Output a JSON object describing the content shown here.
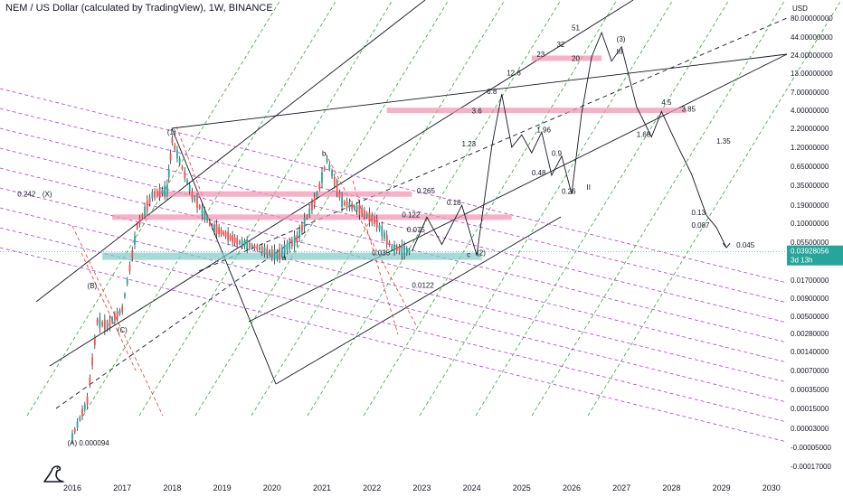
{
  "header": {
    "title": "NEM / US Dollar (calculated by TradingView), 1W, BINANCE"
  },
  "price_axis": {
    "currency_label": "USD",
    "current_price": "0.03928056",
    "countdown": "3d 13h",
    "current_price_color": "#26a69a"
  },
  "colors": {
    "up_candle": "#131722",
    "channel_line": "#131722",
    "pink_zone": "#f48fb1",
    "teal_zone": "#80cbc4",
    "green_dash": "#43a047",
    "magenta_dash": "#ab47bc",
    "red_dash": "#e53935"
  },
  "logo": {
    "icon": "dinosaur-logo-icon"
  },
  "chart_data": {
    "type": "line",
    "title": "NEM / US Dollar (calculated by TradingView), 1W, BINANCE",
    "xlabel": "",
    "ylabel": "",
    "y_scale": "log",
    "x_ticks": [
      "2016",
      "2017",
      "2018",
      "2019",
      "2020",
      "2021",
      "2022",
      "2023",
      "2024",
      "2025",
      "2026",
      "2027",
      "2028",
      "2029",
      "2030"
    ],
    "y_ticks": [
      "80.00000000",
      "44.00000000",
      "24.00000000",
      "13.00000000",
      "7.00000000",
      "4.00000000",
      "2.20000000",
      "1.20000000",
      "0.65000000",
      "0.35000000",
      "0.19000000",
      "0.10000000",
      "0.05500000",
      "0.03000000",
      "0.01700000",
      "0.00900000",
      "0.00500000",
      "0.00280000",
      "0.00140000",
      "0.00070000",
      "0.00035000",
      "0.00015000",
      "0.00003000",
      "-0.00005000",
      "-0.00017000"
    ],
    "series": [
      {
        "kind": "price-history",
        "points": [
          {
            "x": 2016.0,
            "y": 9.4e-05
          },
          {
            "x": 2016.3,
            "y": 0.0003
          },
          {
            "x": 2016.5,
            "y": 0.004
          },
          {
            "x": 2016.7,
            "y": 0.0035
          },
          {
            "x": 2017.0,
            "y": 0.006
          },
          {
            "x": 2017.3,
            "y": 0.09
          },
          {
            "x": 2017.6,
            "y": 0.25
          },
          {
            "x": 2017.9,
            "y": 0.3
          },
          {
            "x": 2018.0,
            "y": 1.5
          },
          {
            "x": 2018.4,
            "y": 0.25
          },
          {
            "x": 2018.8,
            "y": 0.09
          },
          {
            "x": 2019.3,
            "y": 0.055
          },
          {
            "x": 2019.7,
            "y": 0.045
          },
          {
            "x": 2020.1,
            "y": 0.035
          },
          {
            "x": 2020.5,
            "y": 0.06
          },
          {
            "x": 2020.9,
            "y": 0.25
          },
          {
            "x": 2021.1,
            "y": 0.8
          },
          {
            "x": 2021.4,
            "y": 0.2
          },
          {
            "x": 2021.8,
            "y": 0.15
          },
          {
            "x": 2022.1,
            "y": 0.1
          },
          {
            "x": 2022.4,
            "y": 0.045
          },
          {
            "x": 2022.8,
            "y": 0.039
          }
        ]
      },
      {
        "kind": "projection",
        "points": [
          {
            "x": 2022.8,
            "y": 0.04
          },
          {
            "x": 2023.1,
            "y": 0.122
          },
          {
            "x": 2023.4,
            "y": 0.05
          },
          {
            "x": 2023.8,
            "y": 0.18
          },
          {
            "x": 2024.1,
            "y": 0.035
          },
          {
            "x": 2024.4,
            "y": 1.23
          },
          {
            "x": 2024.6,
            "y": 6.8
          },
          {
            "x": 2024.8,
            "y": 1.2
          },
          {
            "x": 2025.0,
            "y": 1.8
          },
          {
            "x": 2025.2,
            "y": 1.0
          },
          {
            "x": 2025.4,
            "y": 1.96
          },
          {
            "x": 2025.6,
            "y": 0.48
          },
          {
            "x": 2025.8,
            "y": 0.9
          },
          {
            "x": 2026.0,
            "y": 0.26
          },
          {
            "x": 2026.2,
            "y": 3.6
          },
          {
            "x": 2026.4,
            "y": 23
          },
          {
            "x": 2026.6,
            "y": 51
          },
          {
            "x": 2026.8,
            "y": 20
          },
          {
            "x": 2027.0,
            "y": 32
          },
          {
            "x": 2027.3,
            "y": 4.5
          },
          {
            "x": 2027.6,
            "y": 1.68
          },
          {
            "x": 2027.8,
            "y": 3.85
          },
          {
            "x": 2028.1,
            "y": 1.35
          },
          {
            "x": 2028.4,
            "y": 0.5
          },
          {
            "x": 2028.7,
            "y": 0.13
          },
          {
            "x": 2028.9,
            "y": 0.087
          },
          {
            "x": 2029.1,
            "y": 0.045
          }
        ]
      }
    ],
    "annotations": [
      {
        "text": "(1)",
        "x": 2017.9,
        "y": 1.8
      },
      {
        "text": "(B)",
        "x": 2016.3,
        "y": 0.012
      },
      {
        "text": "(C)",
        "x": 2016.9,
        "y": 0.0028
      },
      {
        "text": "(A) 0.000094",
        "x": 2015.9,
        "y": 7e-05
      },
      {
        "text": "0.242",
        "x": 2014.9,
        "y": 0.24
      },
      {
        "text": "(X)",
        "x": 2015.4,
        "y": 0.24
      },
      {
        "text": "b",
        "x": 2021.0,
        "y": 0.9
      },
      {
        "text": "a",
        "x": 2020.2,
        "y": 0.03
      },
      {
        "text": "0.265",
        "x": 2022.9,
        "y": 0.265
      },
      {
        "text": "0.122",
        "x": 2022.6,
        "y": 0.122
      },
      {
        "text": "0.18",
        "x": 2023.5,
        "y": 0.18
      },
      {
        "text": "0.075",
        "x": 2022.7,
        "y": 0.075
      },
      {
        "text": "0.035",
        "x": 2022.0,
        "y": 0.035
      },
      {
        "text": "0.0122",
        "x": 2022.8,
        "y": 0.0122
      },
      {
        "text": "c",
        "x": 2023.9,
        "y": 0.033
      },
      {
        "text": "(2)",
        "x": 2024.1,
        "y": 0.035
      },
      {
        "text": "1.23",
        "x": 2023.8,
        "y": 1.23
      },
      {
        "text": "6.8",
        "x": 2024.3,
        "y": 6.8
      },
      {
        "text": "12.6",
        "x": 2024.7,
        "y": 12.6
      },
      {
        "text": "3.6",
        "x": 2024.0,
        "y": 3.6
      },
      {
        "text": "1.96",
        "x": 2025.3,
        "y": 1.96
      },
      {
        "text": "0.9",
        "x": 2025.6,
        "y": 0.9
      },
      {
        "text": "0.48",
        "x": 2025.2,
        "y": 0.48
      },
      {
        "text": "0.26",
        "x": 2025.8,
        "y": 0.26
      },
      {
        "text": "II",
        "x": 2026.3,
        "y": 0.3
      },
      {
        "text": "23",
        "x": 2025.3,
        "y": 23
      },
      {
        "text": "32",
        "x": 2025.7,
        "y": 32
      },
      {
        "text": "51",
        "x": 2026.0,
        "y": 55
      },
      {
        "text": "20",
        "x": 2026.0,
        "y": 20
      },
      {
        "text": "(3)",
        "x": 2026.9,
        "y": 38
      },
      {
        "text": "III",
        "x": 2026.9,
        "y": 25
      },
      {
        "text": "4.5",
        "x": 2027.8,
        "y": 4.8
      },
      {
        "text": "3.85",
        "x": 2028.2,
        "y": 3.85
      },
      {
        "text": "1.68",
        "x": 2027.3,
        "y": 1.68
      },
      {
        "text": "1.35",
        "x": 2028.9,
        "y": 1.35
      },
      {
        "text": "0.13",
        "x": 2028.4,
        "y": 0.13
      },
      {
        "text": "0.087",
        "x": 2028.4,
        "y": 0.087
      },
      {
        "text": "0.045",
        "x": 2029.3,
        "y": 0.045
      }
    ],
    "zones": [
      {
        "color": "pink",
        "from_x": 2017.7,
        "to_x": 2022.8,
        "y": 0.26
      },
      {
        "color": "pink",
        "from_x": 2016.8,
        "to_x": 2024.8,
        "y": 0.122
      },
      {
        "color": "pink",
        "from_x": 2022.3,
        "to_x": 2028.3,
        "y": 4.0
      },
      {
        "color": "pink",
        "from_x": 2025.2,
        "to_x": 2026.6,
        "y": 22
      },
      {
        "color": "teal",
        "from_x": 2016.6,
        "to_x": 2024.2,
        "y": 0.035
      }
    ],
    "legend": "none",
    "grid": false
  }
}
